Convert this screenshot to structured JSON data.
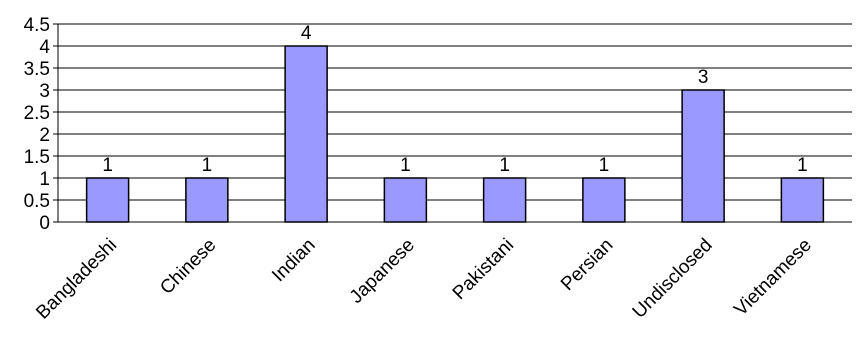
{
  "chart_data": {
    "type": "bar",
    "categories": [
      "Bangladeshi",
      "Chinese",
      "Indian",
      "Japanese",
      "Pakistani",
      "Persian",
      "Undisclosed",
      "Vietnamese"
    ],
    "values": [
      1,
      1,
      4,
      1,
      1,
      1,
      3,
      1
    ],
    "data_labels": [
      "1",
      "1",
      "4",
      "1",
      "1",
      "1",
      "3",
      "1"
    ],
    "y_ticks": [
      "0",
      "0.5",
      "1",
      "1.5",
      "2",
      "2.5",
      "3",
      "3.5",
      "4",
      "4.5"
    ],
    "ylim": [
      0,
      4.5
    ],
    "grid": true,
    "legend": "none",
    "colors": {
      "bar_fill": "#9999ff",
      "bar_stroke": "#000000",
      "grid": "#000000"
    }
  }
}
